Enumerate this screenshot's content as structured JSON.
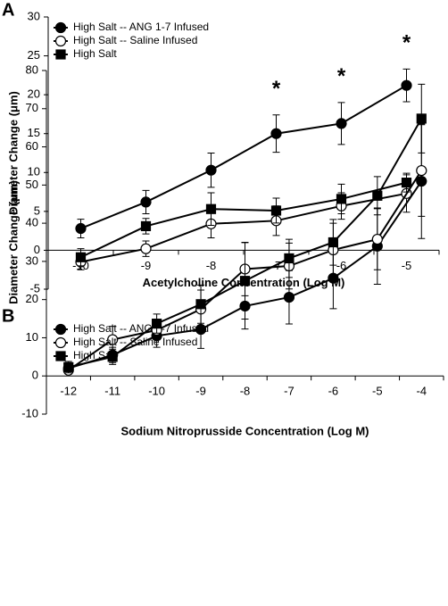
{
  "chart_data": [
    {
      "type": "line",
      "panel_label": "A",
      "xlabel": "Acetylcholine Concentration (Log M)",
      "ylabel": "Diameter Change (μm)",
      "categories": [
        "-10",
        "-9",
        "-8",
        "-7",
        "-6",
        "-5"
      ],
      "ylim": [
        -5,
        30
      ],
      "yticks": [
        -5,
        0,
        5,
        10,
        15,
        20,
        25,
        30
      ],
      "series": [
        {
          "name": "High Salt -- ANG 1-7 Infused",
          "color": "#000000",
          "marker": "circle",
          "marker_fill": "#000000",
          "values": [
            2.8,
            6.2,
            10.3,
            15.0,
            16.3,
            21.2
          ],
          "errors": [
            1.2,
            1.5,
            2.2,
            2.4,
            2.7,
            2.1
          ]
        },
        {
          "name": "High Salt --  Saline Infused",
          "color": "#000000",
          "marker": "circle",
          "marker_fill": "#ffffff",
          "values": [
            -1.5,
            0.2,
            3.4,
            3.8,
            5.7,
            7.3
          ],
          "errors": [
            1.0,
            1.0,
            1.8,
            1.9,
            1.7,
            2.4
          ]
        },
        {
          "name": "High Salt",
          "color": "#000000",
          "marker": "square",
          "marker_fill": "#000000",
          "values": [
            -0.9,
            3.1,
            5.3,
            5.1,
            6.6,
            8.7
          ],
          "errors": [
            1.1,
            1.0,
            2.1,
            1.6,
            1.9,
            1.2
          ]
        }
      ],
      "annotations": [
        {
          "text": "*",
          "x": "-7"
        },
        {
          "text": "*",
          "x": "-6"
        },
        {
          "text": "*",
          "x": "-5"
        }
      ]
    },
    {
      "type": "line",
      "panel_label": "B",
      "xlabel": "Sodium Nitroprusside Concentration (Log M)",
      "ylabel": "Diameter Change (μm)",
      "categories": [
        "-12",
        "-11",
        "-10",
        "-9",
        "-8",
        "-7",
        "-6",
        "-5",
        "-4"
      ],
      "ylim": [
        -10,
        80
      ],
      "yticks": [
        -10,
        0,
        10,
        20,
        30,
        40,
        50,
        60,
        70,
        80
      ],
      "series": [
        {
          "name": "High Salt -- ANG 1-7 Infused",
          "color": "#000000",
          "marker": "circle",
          "marker_fill": "#000000",
          "values": [
            2.0,
            5.5,
            10.5,
            12.2,
            18.3,
            20.6,
            25.6,
            34.0,
            51.0
          ],
          "errors": [
            1.0,
            2.0,
            3.0,
            5.0,
            6.0,
            7.0,
            8.0,
            10.0,
            15.0
          ]
        },
        {
          "name": "High Salt -- Saline Infused",
          "color": "#000000",
          "marker": "circle",
          "marker_fill": "#ffffff",
          "values": [
            1.5,
            9.5,
            12.0,
            17.5,
            28.0,
            28.8,
            33.0,
            35.8,
            53.8
          ],
          "errors": [
            1.0,
            3.5,
            2.5,
            5.0,
            7.0,
            6.0,
            7.0,
            8.0,
            12.0
          ]
        },
        {
          "name": "High Salt",
          "color": "#000000",
          "marker": "square",
          "marker_fill": "#000000",
          "values": [
            2.3,
            5.0,
            13.7,
            18.8,
            24.9,
            30.8,
            35.0,
            47.2,
            67.4
          ],
          "errors": [
            1.5,
            2.0,
            2.5,
            5.0,
            10.0,
            5.0,
            6.0,
            5.0,
            9.0
          ]
        }
      ]
    }
  ]
}
